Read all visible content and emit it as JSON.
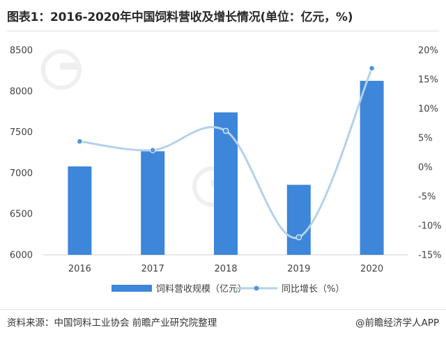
{
  "title": "图表1：2016-2020年中国饲料营收及增长情况(单位：亿元，%)",
  "source": "资料来源：中国饲料工业协会 前瞻产业研究院整理",
  "credit": "@前瞻经济学人APP",
  "watermark": "前瞻产业研究院",
  "colors": {
    "bar": "#3d86d9",
    "line": "#b3d1ea",
    "marker": "#4f98dc",
    "axis": "#cfcfcf",
    "text": "#404040"
  },
  "chart_data": {
    "type": "bar+line",
    "categories": [
      "2016",
      "2017",
      "2018",
      "2019",
      "2020"
    ],
    "series": [
      {
        "name": "饲料营收规模（亿元）",
        "type": "bar",
        "axis": "left",
        "values": [
          7080,
          7265,
          7740,
          6855,
          8125
        ]
      },
      {
        "name": "同比增长（%）",
        "type": "line",
        "axis": "right",
        "values": [
          4.4,
          2.9,
          6.2,
          -12.0,
          16.9
        ]
      }
    ],
    "y_left": {
      "min": 6000,
      "max": 8500,
      "ticks": [
        "6000",
        "6500",
        "7000",
        "7500",
        "8000",
        "8500"
      ]
    },
    "y_right": {
      "min": -15,
      "max": 20,
      "ticks": [
        "-15%",
        "-10%",
        "-5%",
        "0%",
        "5%",
        "10%",
        "15%",
        "20%"
      ]
    },
    "grid": false,
    "legend_position": "bottom"
  }
}
